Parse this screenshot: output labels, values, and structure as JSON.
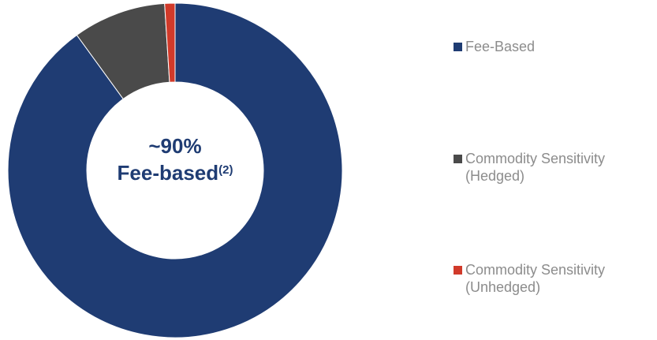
{
  "chart_data": {
    "type": "pie",
    "center_label": {
      "line1": "~90%",
      "line2": "Fee-based",
      "footnote": "(2)"
    },
    "slices": [
      {
        "label": "Fee-Based",
        "value": 90,
        "color": "#1f3c73"
      },
      {
        "label": "Commodity Sensitivity (Hedged)",
        "value": 9,
        "color": "#4a4a4a"
      },
      {
        "label": "Commodity Sensitivity (Unhedged)",
        "value": 1,
        "color": "#d13a2a"
      }
    ],
    "legend_position": "right"
  }
}
